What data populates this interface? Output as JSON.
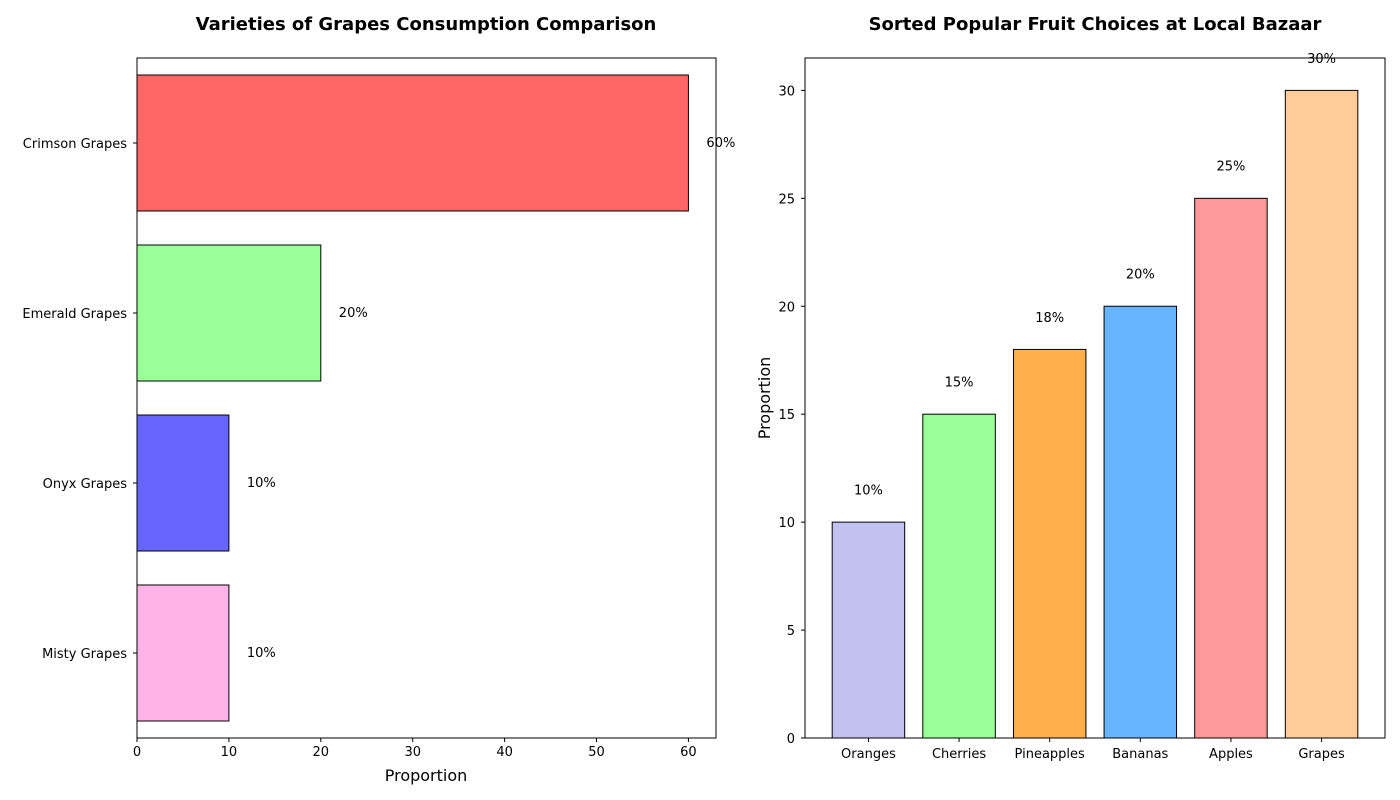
{
  "chart_data": [
    {
      "type": "bar",
      "orientation": "horizontal",
      "title": "Varieties of Grapes Consumption Comparison",
      "xlabel": "Proportion",
      "ylabel": "",
      "xlim": [
        0,
        63
      ],
      "xticks": [
        0,
        10,
        20,
        30,
        40,
        50,
        60
      ],
      "categories": [
        "Crimson Grapes",
        "Emerald Grapes",
        "Onyx Grapes",
        "Misty Grapes"
      ],
      "values": [
        60,
        20,
        10,
        10
      ],
      "data_labels": [
        "60%",
        "20%",
        "10%",
        "10%"
      ],
      "colors": [
        "#ff6666",
        "#99ff99",
        "#6666ff",
        "#ffb3e6"
      ],
      "edgecolor": "#000000",
      "grid": false,
      "legend": "none"
    },
    {
      "type": "bar",
      "orientation": "vertical",
      "title": "Sorted Popular Fruit Choices at Local Bazaar",
      "xlabel": "",
      "ylabel": "Proportion",
      "ylim": [
        0,
        31.5
      ],
      "yticks": [
        0,
        5,
        10,
        15,
        20,
        25,
        30
      ],
      "categories": [
        "Oranges",
        "Cherries",
        "Pineapples",
        "Bananas",
        "Apples",
        "Grapes"
      ],
      "values": [
        10,
        15,
        18,
        20,
        25,
        30
      ],
      "data_labels": [
        "10%",
        "15%",
        "18%",
        "20%",
        "25%",
        "30%"
      ],
      "colors": [
        "#c2c2f0",
        "#99ff99",
        "#ffb04a",
        "#66b3ff",
        "#ff9999",
        "#ffcc99"
      ],
      "edgecolor": "#000000",
      "grid": false,
      "legend": "none"
    }
  ]
}
